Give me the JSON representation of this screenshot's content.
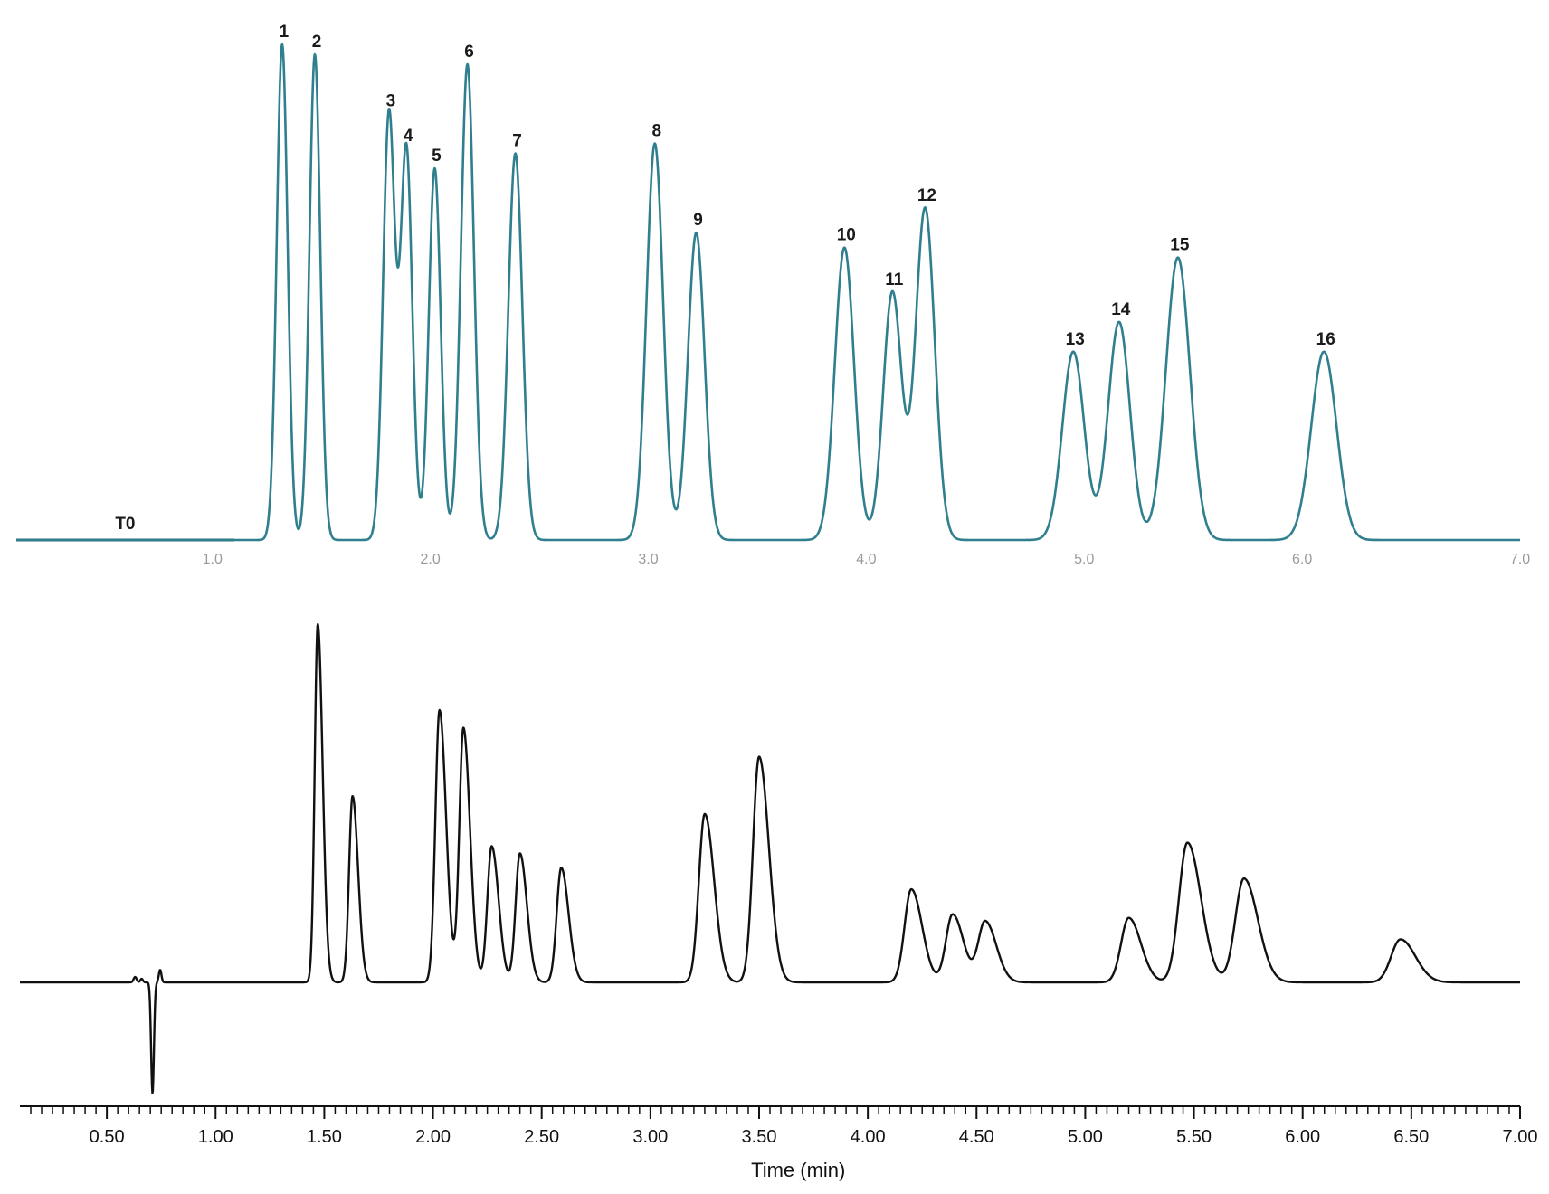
{
  "chart_data": [
    {
      "type": "line",
      "title": "",
      "xlabel": "",
      "ylabel": "",
      "xlim": [
        0.1,
        7.0
      ],
      "x_ticks": [
        "1.0",
        "2.0",
        "3.0",
        "4.0",
        "5.0",
        "6.0",
        "7.0"
      ],
      "x_tick_values": [
        1.0,
        2.0,
        3.0,
        4.0,
        5.0,
        6.0,
        7.0
      ],
      "line_color": "#2f7f8e",
      "baseline_color": "#2f6e7a",
      "marker": {
        "label": "T0",
        "x": 0.6
      },
      "peaks": [
        {
          "label": "1",
          "rt": 1.32,
          "height": 1.0,
          "width": 0.025
        },
        {
          "label": "2",
          "rt": 1.47,
          "height": 0.98,
          "width": 0.025
        },
        {
          "label": "3",
          "rt": 1.81,
          "height": 0.86,
          "width": 0.027
        },
        {
          "label": "4",
          "rt": 1.89,
          "height": 0.79,
          "width": 0.027
        },
        {
          "label": "5",
          "rt": 2.02,
          "height": 0.75,
          "width": 0.027
        },
        {
          "label": "6",
          "rt": 2.17,
          "height": 0.96,
          "width": 0.03
        },
        {
          "label": "7",
          "rt": 2.39,
          "height": 0.78,
          "width": 0.032
        },
        {
          "label": "8",
          "rt": 3.03,
          "height": 0.8,
          "width": 0.038
        },
        {
          "label": "9",
          "rt": 3.22,
          "height": 0.62,
          "width": 0.038
        },
        {
          "label": "10",
          "rt": 3.9,
          "height": 0.59,
          "width": 0.044
        },
        {
          "label": "11",
          "rt": 4.12,
          "height": 0.5,
          "width": 0.042
        },
        {
          "label": "12",
          "rt": 4.27,
          "height": 0.67,
          "width": 0.044
        },
        {
          "label": "13",
          "rt": 4.95,
          "height": 0.38,
          "width": 0.05
        },
        {
          "label": "14",
          "rt": 5.16,
          "height": 0.44,
          "width": 0.05
        },
        {
          "label": "15",
          "rt": 5.43,
          "height": 0.57,
          "width": 0.055
        },
        {
          "label": "16",
          "rt": 6.1,
          "height": 0.38,
          "width": 0.058
        }
      ]
    },
    {
      "type": "line",
      "title": "",
      "xlabel": "Time (min)",
      "ylabel": "",
      "xlim": [
        0.1,
        7.0
      ],
      "x_ticks": [
        "0.50",
        "1.00",
        "1.50",
        "2.00",
        "2.50",
        "3.00",
        "3.50",
        "4.00",
        "4.50",
        "5.00",
        "5.50",
        "6.00",
        "6.50",
        "7.00"
      ],
      "x_tick_values": [
        0.5,
        1.0,
        1.5,
        2.0,
        2.5,
        3.0,
        3.5,
        4.0,
        4.5,
        5.0,
        5.5,
        6.0,
        6.5,
        7.0
      ],
      "minor_tick_step": 0.05,
      "line_color": "#111111",
      "disturbance": {
        "rt": 0.71,
        "depth": -0.31
      },
      "peaks": [
        {
          "rt": 1.47,
          "height": 1.0,
          "width": 0.014
        },
        {
          "rt": 1.63,
          "height": 0.52,
          "width": 0.016
        },
        {
          "rt": 2.03,
          "height": 0.76,
          "width": 0.019
        },
        {
          "rt": 2.14,
          "height": 0.71,
          "width": 0.019
        },
        {
          "rt": 2.27,
          "height": 0.38,
          "width": 0.02
        },
        {
          "rt": 2.4,
          "height": 0.36,
          "width": 0.02
        },
        {
          "rt": 2.59,
          "height": 0.32,
          "width": 0.021
        },
        {
          "rt": 3.25,
          "height": 0.47,
          "width": 0.027
        },
        {
          "rt": 3.5,
          "height": 0.63,
          "width": 0.028
        },
        {
          "rt": 4.2,
          "height": 0.26,
          "width": 0.031
        },
        {
          "rt": 4.39,
          "height": 0.19,
          "width": 0.031
        },
        {
          "rt": 4.54,
          "height": 0.17,
          "width": 0.032
        },
        {
          "rt": 5.2,
          "height": 0.18,
          "width": 0.035
        },
        {
          "rt": 5.47,
          "height": 0.39,
          "width": 0.039
        },
        {
          "rt": 5.73,
          "height": 0.29,
          "width": 0.04
        },
        {
          "rt": 6.45,
          "height": 0.12,
          "width": 0.043
        }
      ]
    }
  ]
}
